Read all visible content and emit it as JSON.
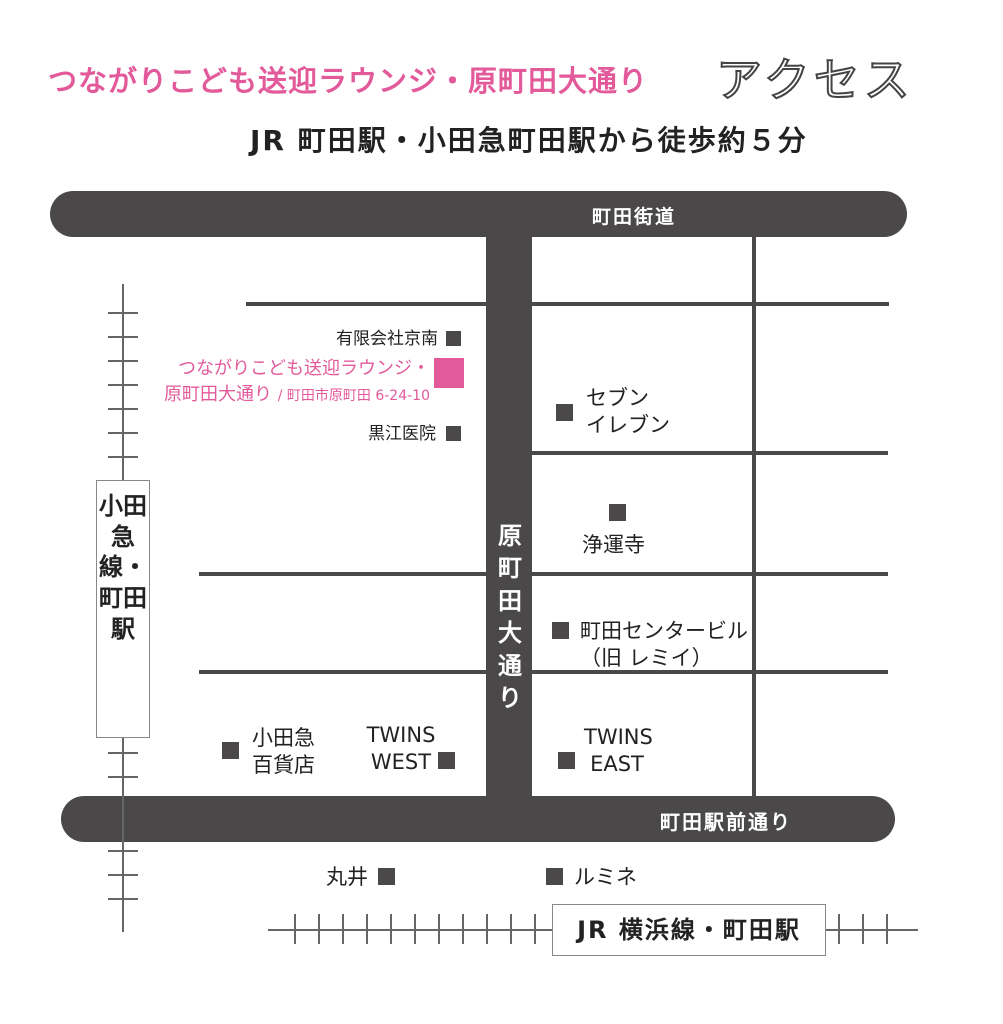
{
  "header": {
    "title": "つながりこども送迎ラウンジ・原町田大通り",
    "access": "アクセス",
    "subtitle": "JR 町田駅・小田急町田駅から徒歩約５分"
  },
  "roads": {
    "top": "町田街道",
    "bottom": "町田駅前通り",
    "vertical": "原町田大通り"
  },
  "stations": {
    "odakyu": "小田急線・町田駅",
    "jr": "JR 横浜線・町田駅"
  },
  "target": {
    "name_line1": "つながりこども送迎ラウンジ・",
    "name_line2": "原町田大通り",
    "address": "/ 町田市原町田 6-24-10",
    "color": "#e35a9b"
  },
  "landmarks": {
    "keinan": "有限会社京南",
    "kuroe": "黒江医院",
    "seven_line1": "セブン",
    "seven_line2": "イレブン",
    "jounji": "浄運寺",
    "center_line1": "町田センタービル",
    "center_line2": "（旧 レミイ）",
    "odakyu_dept_line1": "小田急",
    "odakyu_dept_line2": "百貨店",
    "twins_west_line1": "TWINS",
    "twins_west_line2": "WEST",
    "twins_east_line1": "TWINS",
    "twins_east_line2": "EAST",
    "marui": "丸井",
    "lumine": "ルミネ"
  },
  "colors": {
    "accent": "#e35a9b",
    "road": "#4a4849"
  }
}
